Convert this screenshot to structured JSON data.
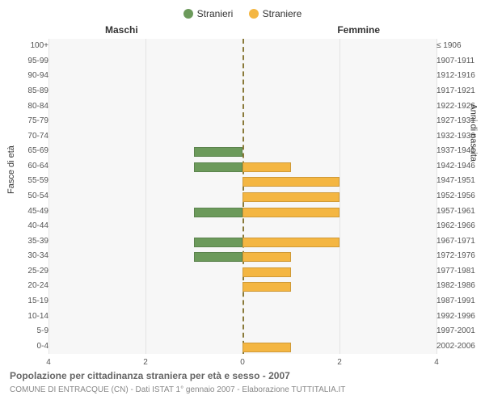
{
  "legend": {
    "male": {
      "label": "Stranieri",
      "color": "#6c9a5b"
    },
    "female": {
      "label": "Straniere",
      "color": "#f4b642"
    }
  },
  "panel_titles": {
    "left": "Maschi",
    "right": "Femmine"
  },
  "axis_titles": {
    "left": "Fasce di età",
    "right": "Anni di nascita"
  },
  "pyramid": {
    "type": "bar",
    "x_max": 4,
    "x_ticks": [
      4,
      2,
      0,
      2,
      4
    ],
    "grid_color": "#e3e3e3",
    "zero_line_color": "#8a7a3a",
    "background_color": "#f7f7f7",
    "bar_fill_opacity": 1.0,
    "label_fontsize": 10,
    "rows": [
      {
        "age": "100+",
        "birth": "≤ 1906",
        "m": 0,
        "f": 0
      },
      {
        "age": "95-99",
        "birth": "1907-1911",
        "m": 0,
        "f": 0
      },
      {
        "age": "90-94",
        "birth": "1912-1916",
        "m": 0,
        "f": 0
      },
      {
        "age": "85-89",
        "birth": "1917-1921",
        "m": 0,
        "f": 0
      },
      {
        "age": "80-84",
        "birth": "1922-1926",
        "m": 0,
        "f": 0
      },
      {
        "age": "75-79",
        "birth": "1927-1931",
        "m": 0,
        "f": 0
      },
      {
        "age": "70-74",
        "birth": "1932-1936",
        "m": 0,
        "f": 0
      },
      {
        "age": "65-69",
        "birth": "1937-1941",
        "m": 1,
        "f": 0
      },
      {
        "age": "60-64",
        "birth": "1942-1946",
        "m": 1,
        "f": 1
      },
      {
        "age": "55-59",
        "birth": "1947-1951",
        "m": 0,
        "f": 2
      },
      {
        "age": "50-54",
        "birth": "1952-1956",
        "m": 0,
        "f": 2
      },
      {
        "age": "45-49",
        "birth": "1957-1961",
        "m": 1,
        "f": 2
      },
      {
        "age": "40-44",
        "birth": "1962-1966",
        "m": 0,
        "f": 0
      },
      {
        "age": "35-39",
        "birth": "1967-1971",
        "m": 1,
        "f": 2
      },
      {
        "age": "30-34",
        "birth": "1972-1976",
        "m": 1,
        "f": 1
      },
      {
        "age": "25-29",
        "birth": "1977-1981",
        "m": 0,
        "f": 1
      },
      {
        "age": "20-24",
        "birth": "1982-1986",
        "m": 0,
        "f": 1
      },
      {
        "age": "15-19",
        "birth": "1987-1991",
        "m": 0,
        "f": 0
      },
      {
        "age": "10-14",
        "birth": "1992-1996",
        "m": 0,
        "f": 0
      },
      {
        "age": "5-9",
        "birth": "1997-2001",
        "m": 0,
        "f": 0
      },
      {
        "age": "0-4",
        "birth": "2002-2006",
        "m": 0,
        "f": 1
      }
    ]
  },
  "caption": {
    "line1": "Popolazione per cittadinanza straniera per età e sesso - 2007",
    "line2": "COMUNE DI ENTRACQUE (CN) - Dati ISTAT 1° gennaio 2007 - Elaborazione TUTTITALIA.IT"
  },
  "colors": {
    "text": "#333333",
    "subtext": "#888888",
    "background": "#ffffff"
  }
}
